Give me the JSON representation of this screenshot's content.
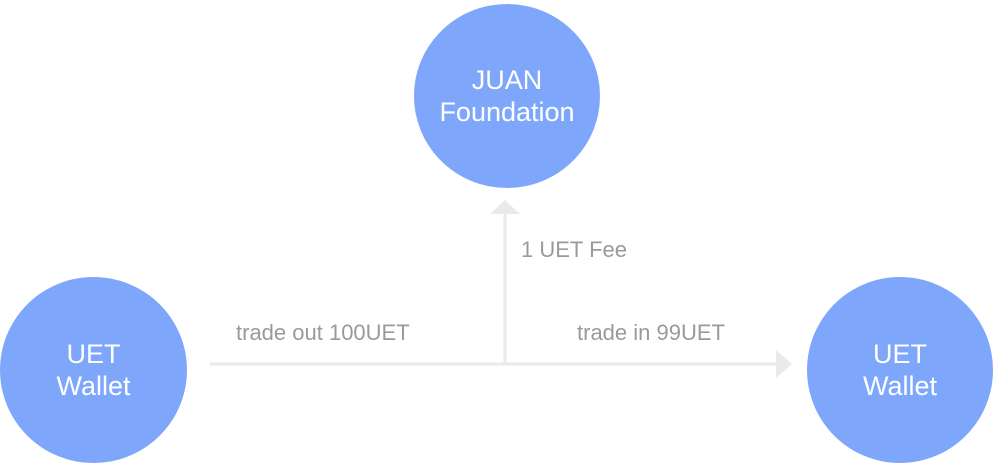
{
  "colors": {
    "node": "#7ea7fb",
    "line": "#eaeaea",
    "label": "#9a9a9a"
  },
  "nodes": {
    "foundation": {
      "line1": "JUAN",
      "line2": "Foundation"
    },
    "sender": {
      "line1": "UET",
      "line2": "Wallet"
    },
    "receiver": {
      "line1": "UET",
      "line2": "Wallet"
    }
  },
  "edges": {
    "trade_out": "trade out 100UET",
    "trade_in": "trade in 99UET",
    "fee": "1 UET Fee"
  }
}
